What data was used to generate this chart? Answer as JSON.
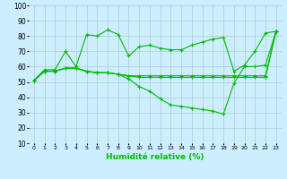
{
  "xlabel": "Humidité relative (%)",
  "xlim": [
    -0.5,
    23.5
  ],
  "ylim": [
    10,
    100
  ],
  "xticks": [
    0,
    1,
    2,
    3,
    4,
    5,
    6,
    7,
    8,
    9,
    10,
    11,
    12,
    13,
    14,
    15,
    16,
    17,
    18,
    19,
    20,
    21,
    22,
    23
  ],
  "yticks": [
    10,
    20,
    30,
    40,
    50,
    60,
    70,
    80,
    90,
    100
  ],
  "bg_color": "#cceeff",
  "grid_color": "#aacccc",
  "line_color": "#00bb00",
  "lines": [
    [
      51,
      58,
      58,
      70,
      60,
      81,
      80,
      84,
      81,
      67,
      73,
      74,
      72,
      71,
      71,
      74,
      76,
      78,
      79,
      57,
      61,
      70,
      82,
      83
    ],
    [
      51,
      57,
      57,
      59,
      59,
      57,
      56,
      56,
      55,
      52,
      47,
      44,
      39,
      35,
      34,
      33,
      32,
      31,
      29,
      49,
      60,
      60,
      61,
      83
    ],
    [
      51,
      57,
      57,
      59,
      59,
      57,
      56,
      56,
      55,
      54,
      53,
      53,
      53,
      53,
      53,
      53,
      53,
      53,
      53,
      53,
      53,
      53,
      53,
      83
    ],
    [
      51,
      57,
      57,
      59,
      59,
      57,
      56,
      56,
      55,
      54,
      54,
      54,
      54,
      54,
      54,
      54,
      54,
      54,
      54,
      54,
      54,
      54,
      54,
      83
    ]
  ]
}
